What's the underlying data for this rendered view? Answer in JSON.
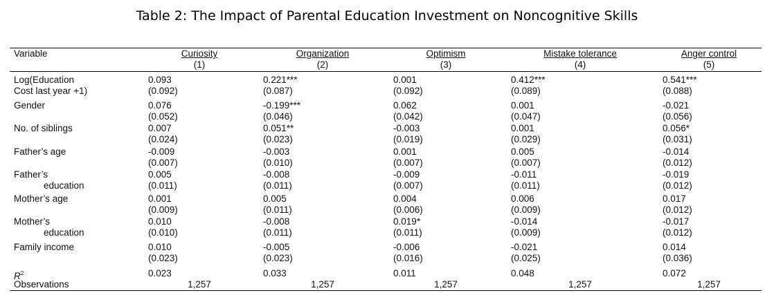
{
  "title": "Table 2: The Impact of Parental Education Investment on Noncognitive Skills",
  "header": {
    "variable_label": "Variable",
    "columns": [
      {
        "name": "Curiosity",
        "num": "(1)"
      },
      {
        "name": "Organization",
        "num": "(2)"
      },
      {
        "name": "Optimism",
        "num": "(3)"
      },
      {
        "name": "Mistake tolerance",
        "num": "(4)"
      },
      {
        "name": "Anger control",
        "num": "(5)"
      }
    ]
  },
  "rows": [
    {
      "label1": "Log(Education",
      "label2": "Cost last year +1)",
      "coef": [
        "0.093",
        "0.221***",
        "0.001",
        "0.412***",
        "0.541***"
      ],
      "se": [
        "(0.092)",
        "(0.087)",
        "(0.092)",
        "(0.089)",
        "(0.088)"
      ]
    },
    {
      "label1": "Gender",
      "label2": "",
      "coef": [
        "0.076",
        "-0.199***",
        "0.062",
        "0.001",
        "-0.021"
      ],
      "se": [
        "(0.052)",
        "(0.046)",
        "(0.042)",
        "(0.047)",
        "(0.056)"
      ]
    },
    {
      "label1": "No. of siblings",
      "label2": "",
      "coef": [
        "0.007",
        "0.051**",
        "-0.003",
        "0.001",
        "0.056*"
      ],
      "se": [
        "(0.024)",
        "(0.023)",
        "(0.019)",
        "(0.029)",
        "(0.031)"
      ]
    },
    {
      "label1": "Father’s age",
      "label2": "",
      "coef": [
        "-0.009",
        "-0.003",
        "0.001",
        "0.005",
        "-0.014"
      ],
      "se": [
        "(0.007)",
        "(0.010)",
        "(0.007)",
        "(0.007)",
        "(0.012)"
      ]
    },
    {
      "label1": "Father’s",
      "label2": "education",
      "coef": [
        "0.005",
        "-0.008",
        "-0.009",
        "-0.011",
        "-0.019"
      ],
      "se": [
        "(0.011)",
        "(0.011)",
        "(0.007)",
        "(0.011)",
        "(0.012)"
      ]
    },
    {
      "label1": "Mother’s age",
      "label2": "",
      "coef": [
        "0.001",
        "0.005",
        "0.004",
        "0.006",
        "0.017"
      ],
      "se": [
        "(0.009)",
        "(0.011)",
        "(0.006)",
        "(0.009)",
        "(0.012)"
      ]
    },
    {
      "label1": "Mother’s",
      "label2": "education",
      "coef": [
        "0.010",
        "-0.008",
        "0.019*",
        "-0.014",
        "-0.017"
      ],
      "se": [
        "(0.010)",
        "(0.011)",
        "(0.011)",
        "(0.009)",
        "(0.012)"
      ]
    },
    {
      "label1": "Family income",
      "label2": "",
      "coef": [
        "0.010",
        "-0.005",
        "-0.006",
        "-0.021",
        "0.014"
      ],
      "se": [
        "(0.023)",
        "(0.023)",
        "(0.016)",
        "(0.025)",
        "(0.036)"
      ]
    }
  ],
  "r2": {
    "label": "R",
    "sup": "2",
    "values": [
      "0.023",
      "0.033",
      "0.011",
      "0.048",
      "0.072"
    ]
  },
  "observations": {
    "label": "Observations",
    "values": [
      "1,257",
      "1,257",
      "1,257",
      "1,257",
      "1,257"
    ]
  }
}
